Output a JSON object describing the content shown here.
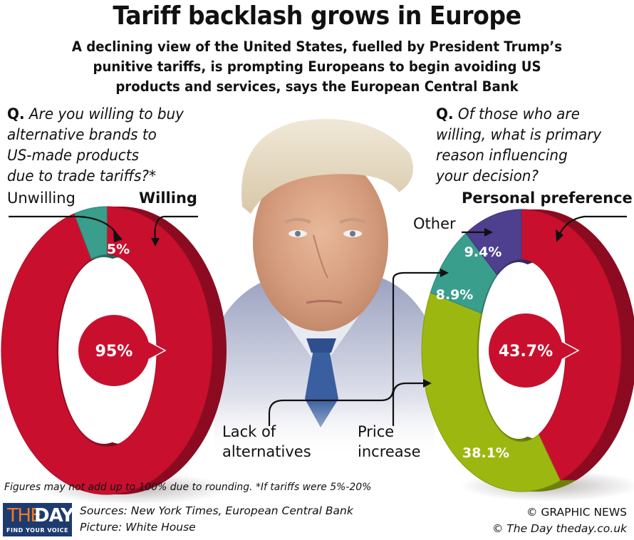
{
  "header": {
    "title": "Tariff backlash grows in Europe",
    "subtitle_lines": [
      "A declining view of the United States, fuelled by President Trump’s",
      "punitive tariffs, is prompting Europeans to begin avoiding US",
      "products and services, says the European Central Bank"
    ]
  },
  "left_panel": {
    "question_prefix": "Q.",
    "question_lines": [
      "Are you willing to buy",
      "alternative brands to",
      "US-made products",
      "due to trade tariffs?*"
    ]
  },
  "right_panel": {
    "question_prefix": "Q.",
    "question_lines": [
      "Of those who are",
      "willing, what is primary",
      "reason influencing",
      "your decision?"
    ]
  },
  "photo": {
    "icon": "portrait-photo-icon",
    "description": "Portrait of President Trump"
  },
  "chart_data": [
    {
      "type": "pie",
      "title": "Are you willing to buy alternative brands to US-made products due to trade tariffs?*",
      "style": "3d-donut",
      "categories": [
        "Willing",
        "Unwilling"
      ],
      "values": [
        95,
        5
      ],
      "labels": [
        "95%",
        "5%"
      ],
      "colors": [
        "#c8102e",
        "#3a9e8c"
      ],
      "callout_labels": {
        "Willing": "Willing",
        "Unwilling": "Unwilling"
      },
      "emphasized": "Willing"
    },
    {
      "type": "pie",
      "title": "Of those who are willing, what is primary reason influencing your decision?",
      "style": "3d-donut",
      "categories": [
        "Personal preference",
        "Price increase",
        "Lack of alternatives",
        "Other"
      ],
      "values": [
        43.7,
        38.1,
        8.9,
        9.4
      ],
      "labels": [
        "43.7%",
        "38.1%",
        "8.9%",
        "9.4%"
      ],
      "colors": [
        "#c8102e",
        "#9cb810",
        "#3a9e8c",
        "#4e3f8f"
      ],
      "callout_labels": {
        "Personal preference": "Personal preference",
        "Price increase": [
          "Price",
          "increase"
        ],
        "Lack of alternatives": [
          "Lack of",
          "alternatives"
        ],
        "Other": "Other"
      },
      "emphasized": "Personal preference"
    }
  ],
  "footer": {
    "note": "Figures may not add up to 100% due to rounding. *If tariffs were 5%-20%",
    "logo": {
      "the": "THE",
      "day": "DAY",
      "tagline": "FIND YOUR VOICE"
    },
    "sources": "Sources: New York Times, European Central Bank",
    "picture": "Picture: White House",
    "credit1": "© GRAPHIC NEWS",
    "credit2": "© The Day   theday.co.uk"
  }
}
